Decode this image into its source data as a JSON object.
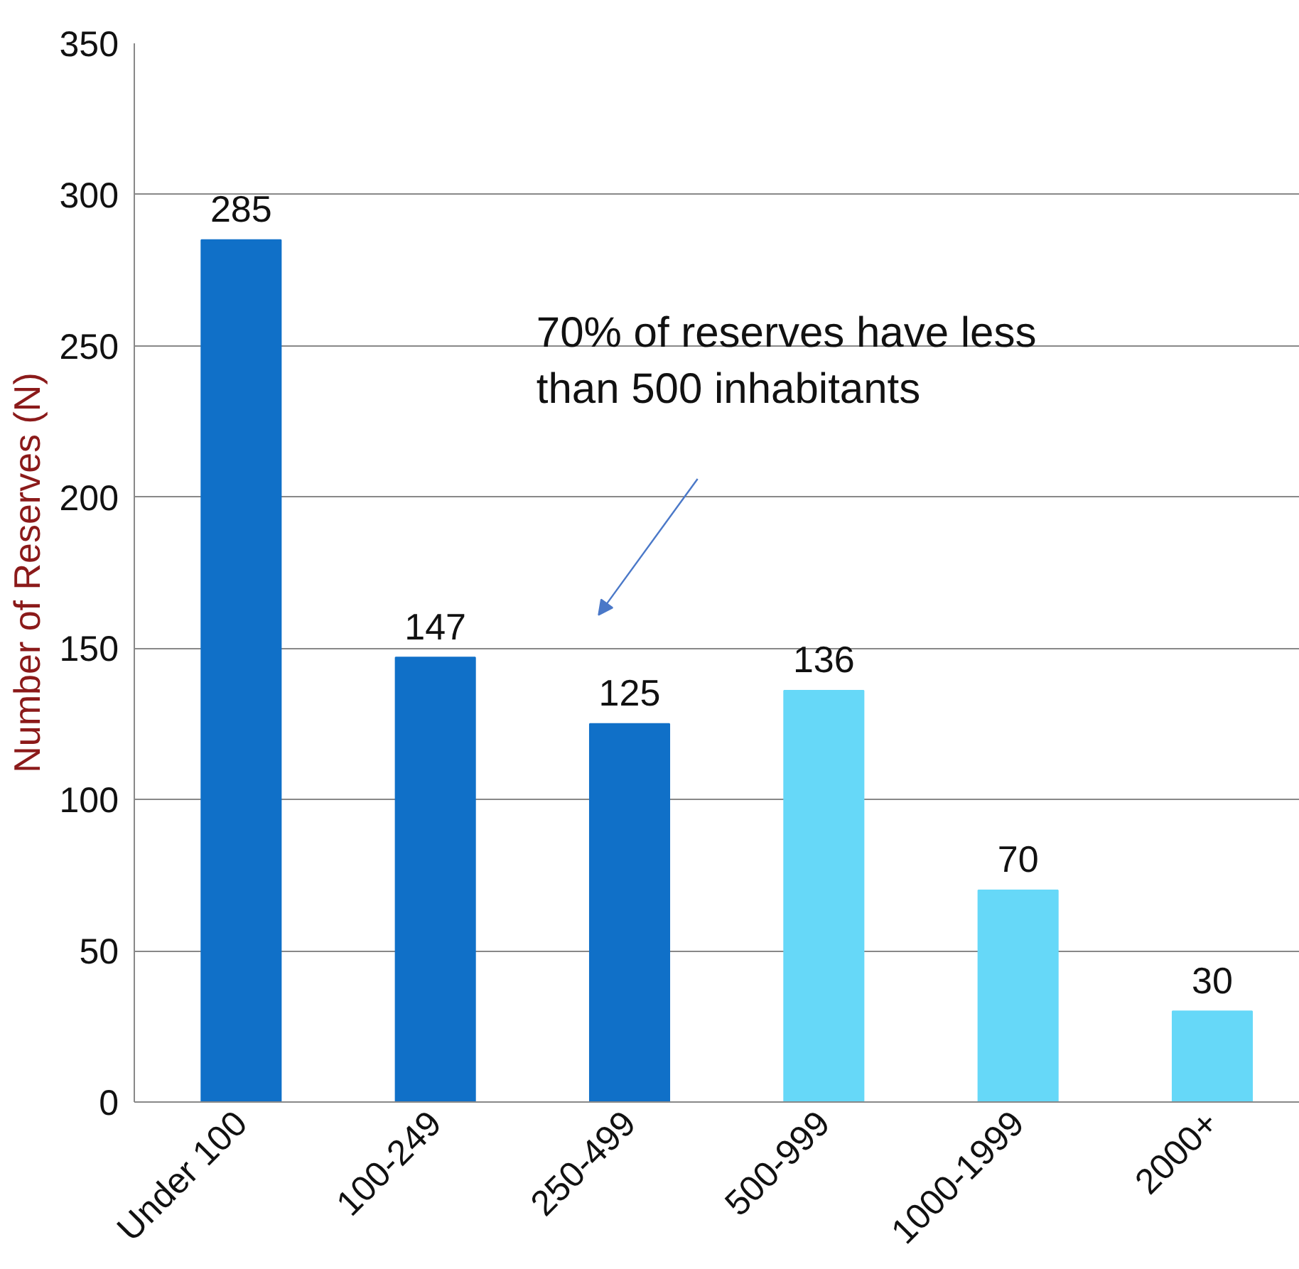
{
  "chart_data": {
    "type": "bar",
    "ylabel": "Number of Reserves (N)",
    "categories": [
      "Under 100",
      "100-249",
      "250-499",
      "500-999",
      "1000-1999",
      "2000+"
    ],
    "values": [
      285,
      147,
      125,
      136,
      70,
      30
    ],
    "colors": [
      "#1070c8",
      "#1070c8",
      "#1070c8",
      "#66d8f8",
      "#66d8f8",
      "#66d8f8"
    ],
    "ylim": [
      0,
      350
    ],
    "yticks": [
      0,
      50,
      100,
      150,
      200,
      250,
      300,
      350
    ],
    "grid": "y",
    "data_labels": true,
    "annotations": [
      "70% of reserves have less than 500 inhabitants"
    ]
  }
}
